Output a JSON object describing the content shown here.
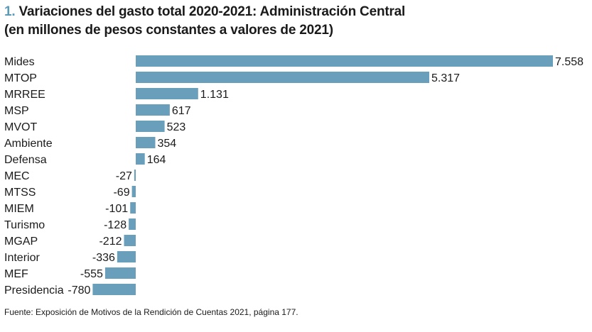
{
  "title": {
    "number": "1.",
    "line1": "Variaciones del gasto total 2020-2021: Administración Central",
    "line2": "(en millones de pesos constantes a valores de 2021)"
  },
  "chart_data": {
    "type": "bar",
    "orientation": "horizontal",
    "title": "Variaciones del gasto total 2020-2021: Administración Central (en millones de pesos constantes a valores de 2021)",
    "xlabel": "",
    "ylabel": "",
    "grid": false,
    "legend": "none",
    "bar_color": "#6a9fbb",
    "categories": [
      "Mides",
      "MTOP",
      "MRREE",
      "MSP",
      "MVOT",
      "Ambiente",
      "Defensa",
      "MEC",
      "MTSS",
      "MIEM",
      "Turismo",
      "MGAP",
      "Interior",
      "MEF",
      "Presidencia"
    ],
    "values": [
      7558,
      5317,
      1131,
      617,
      523,
      354,
      164,
      -27,
      -69,
      -101,
      -128,
      -212,
      -336,
      -555,
      -780
    ],
    "value_labels": [
      "7.558",
      "5.317",
      "1.131",
      "617",
      "523",
      "354",
      "164",
      "-27",
      "-69",
      "-101",
      "-128",
      "-212",
      "-336",
      "-555",
      "-780"
    ]
  },
  "source": "Fuente: Exposición de Motivos de la Rendición de Cuentas 2021, página 177."
}
